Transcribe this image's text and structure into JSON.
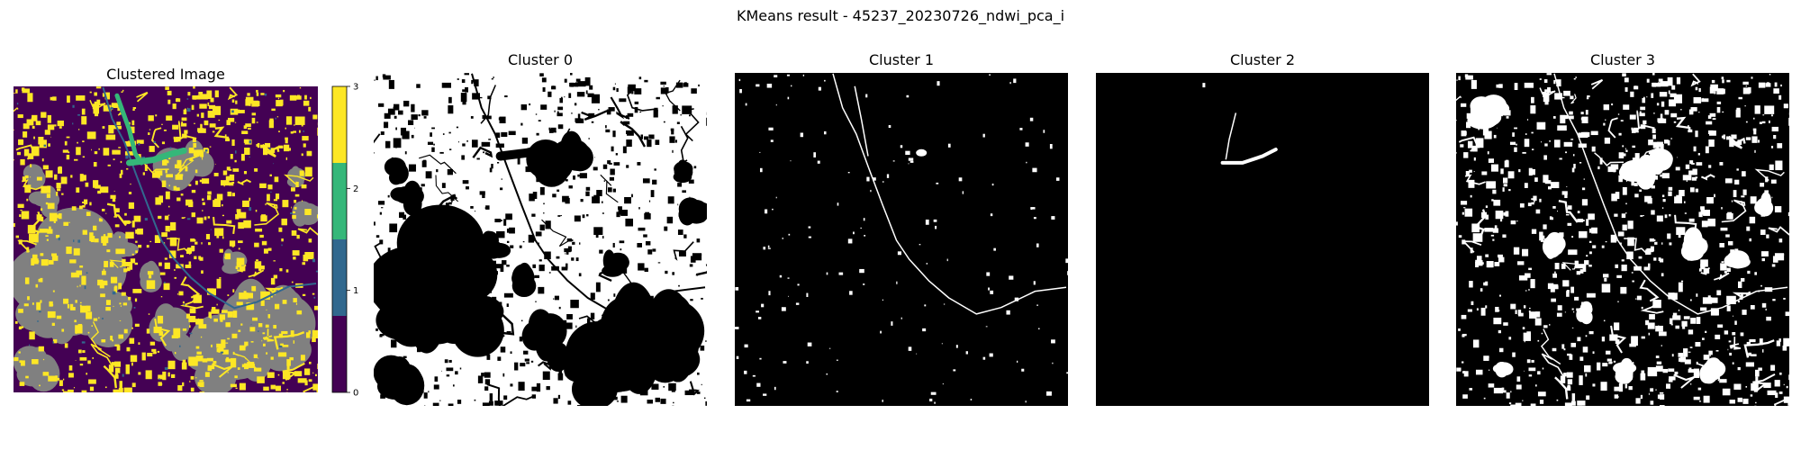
{
  "figure": {
    "suptitle": "KMeans result - 45237_20230726_ndwi_pca_i"
  },
  "chart_data": [
    {
      "type": "heatmap",
      "title": "Clustered Image",
      "categories": [
        0,
        1,
        2,
        3
      ],
      "category_colors": [
        "#440154",
        "#31688e",
        "#35b779",
        "#fde725"
      ],
      "masked_color": "#808080",
      "colorbar": {
        "ticks": [
          0,
          1,
          2,
          3
        ],
        "range": [
          0,
          3
        ]
      },
      "axes": "off"
    },
    {
      "type": "heatmap",
      "title": "Cluster 0",
      "colors": [
        "#000000",
        "#ffffff"
      ],
      "axes": "off"
    },
    {
      "type": "heatmap",
      "title": "Cluster 1",
      "colors": [
        "#000000",
        "#ffffff"
      ],
      "axes": "off"
    },
    {
      "type": "heatmap",
      "title": "Cluster 2",
      "colors": [
        "#000000",
        "#ffffff"
      ],
      "axes": "off"
    },
    {
      "type": "heatmap",
      "title": "Cluster 3",
      "colors": [
        "#000000",
        "#ffffff"
      ],
      "axes": "off"
    }
  ]
}
